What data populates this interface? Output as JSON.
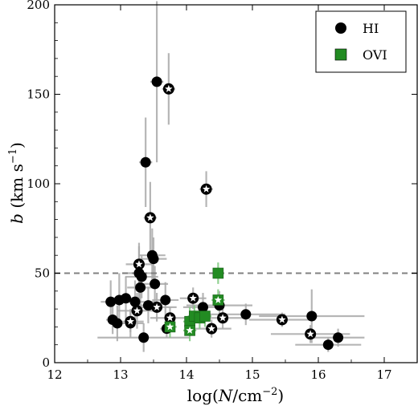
{
  "chart_data": {
    "type": "scatter",
    "xlabel_main": "log(",
    "xlabel_var": "N",
    "xlabel_unit": "/cm",
    "xlabel_exp": "−2",
    "xlabel_close": ")",
    "ylabel_var": "b",
    "ylabel_unit": "(km s",
    "ylabel_exp": "−1",
    "ylabel_close": ")",
    "xlim": [
      12,
      17.5
    ],
    "ylim": [
      0,
      200
    ],
    "xticks": [
      12,
      13,
      14,
      15,
      16,
      17
    ],
    "yticks": [
      0,
      50,
      100,
      150,
      200
    ],
    "hline": {
      "y": 50,
      "style": "dashed",
      "color": "#808080"
    },
    "legend": {
      "position": "top-right",
      "entries": [
        {
          "label": "HI",
          "marker": "circle",
          "color": "#000000"
        },
        {
          "label": "OVI",
          "marker": "square",
          "color": "#228B22"
        }
      ]
    },
    "series": [
      {
        "name": "HI",
        "marker": "circle",
        "color": "#000000",
        "points": [
          {
            "x": 12.85,
            "y": 34,
            "xerr": 0.15,
            "yerr": 12
          },
          {
            "x": 12.88,
            "y": 24,
            "xerr": 0.1,
            "yerr": 8
          },
          {
            "x": 12.95,
            "y": 22,
            "xerr": 0.1,
            "yerr": 10
          },
          {
            "x": 12.98,
            "y": 35,
            "xerr": 0.2,
            "yerr": 15
          },
          {
            "x": 13.08,
            "y": 36,
            "xerr": 0.2,
            "yerr": 12
          },
          {
            "x": 13.15,
            "y": 22,
            "xerr": 0.2,
            "yerr": 8
          },
          {
            "x": 13.22,
            "y": 34,
            "xerr": 0.3,
            "yerr": 12
          },
          {
            "x": 13.28,
            "y": 50,
            "xerr": 0.25,
            "yerr": 15
          },
          {
            "x": 13.3,
            "y": 42,
            "xerr": 0.2,
            "yerr": 10
          },
          {
            "x": 13.32,
            "y": 48,
            "xerr": 0.25,
            "yerr": 12
          },
          {
            "x": 13.35,
            "y": 14,
            "xerr": 0.7,
            "yerr": 8
          },
          {
            "x": 13.38,
            "y": 112,
            "xerr": 0.1,
            "yerr": 25
          },
          {
            "x": 13.42,
            "y": 32,
            "xerr": 0.15,
            "yerr": 10
          },
          {
            "x": 13.48,
            "y": 60,
            "xerr": 0.2,
            "yerr": 15
          },
          {
            "x": 13.5,
            "y": 58,
            "xerr": 0.2,
            "yerr": 12
          },
          {
            "x": 13.52,
            "y": 44,
            "xerr": 0.2,
            "yerr": 10
          },
          {
            "x": 13.55,
            "y": 157,
            "xerr": 0.1,
            "yerr": 45
          },
          {
            "x": 13.68,
            "y": 35,
            "xerr": 0.2,
            "yerr": 10
          },
          {
            "x": 13.7,
            "y": 19,
            "xerr": 0.1,
            "yerr": 5
          },
          {
            "x": 14.25,
            "y": 31,
            "xerr": 0.3,
            "yerr": 8
          },
          {
            "x": 14.5,
            "y": 32,
            "xerr": 0.5,
            "yerr": 8
          },
          {
            "x": 14.9,
            "y": 27,
            "xerr": 0.6,
            "yerr": 6
          },
          {
            "x": 15.9,
            "y": 26,
            "xerr": 0.8,
            "yerr": 15
          },
          {
            "x": 16.15,
            "y": 10,
            "xerr": 0.5,
            "yerr": 4
          },
          {
            "x": 16.3,
            "y": 14,
            "xerr": 0.4,
            "yerr": 5
          }
        ]
      },
      {
        "name": "HI (star)",
        "marker": "star-circle",
        "color": "#000000",
        "points": [
          {
            "x": 13.15,
            "y": 23,
            "xerr": 0.2,
            "yerr": 6
          },
          {
            "x": 13.25,
            "y": 29,
            "xerr": 0.3,
            "yerr": 10
          },
          {
            "x": 13.28,
            "y": 55,
            "xerr": 0.2,
            "yerr": 12
          },
          {
            "x": 13.45,
            "y": 81,
            "xerr": 0.1,
            "yerr": 20
          },
          {
            "x": 13.55,
            "y": 31,
            "xerr": 0.3,
            "yerr": 8
          },
          {
            "x": 13.73,
            "y": 153,
            "xerr": 0.1,
            "yerr": 20
          },
          {
            "x": 13.75,
            "y": 25,
            "xerr": 0.3,
            "yerr": 6
          },
          {
            "x": 14.1,
            "y": 36,
            "xerr": 0.2,
            "yerr": 6
          },
          {
            "x": 14.3,
            "y": 97,
            "xerr": 0.1,
            "yerr": 10
          },
          {
            "x": 14.38,
            "y": 19,
            "xerr": 0.3,
            "yerr": 5
          },
          {
            "x": 14.55,
            "y": 25,
            "xerr": 0.4,
            "yerr": 6
          },
          {
            "x": 15.45,
            "y": 24,
            "xerr": 0.5,
            "yerr": 4
          },
          {
            "x": 15.88,
            "y": 16,
            "xerr": 0.6,
            "yerr": 5
          }
        ]
      },
      {
        "name": "OVI",
        "marker": "square",
        "color": "#228B22",
        "points": [
          {
            "x": 14.05,
            "y": 23,
            "xerr": 0.1,
            "yerr": 8
          },
          {
            "x": 14.12,
            "y": 26,
            "xerr": 0.1,
            "yerr": 6
          },
          {
            "x": 14.2,
            "y": 25,
            "xerr": 0.1,
            "yerr": 6
          },
          {
            "x": 14.28,
            "y": 26,
            "xerr": 0.1,
            "yerr": 6
          },
          {
            "x": 14.48,
            "y": 50,
            "xerr": 0.08,
            "yerr": 6
          }
        ]
      },
      {
        "name": "OVI (star)",
        "marker": "star-square",
        "color": "#228B22",
        "points": [
          {
            "x": 13.75,
            "y": 20,
            "xerr": 0.1,
            "yerr": 6
          },
          {
            "x": 14.05,
            "y": 18,
            "xerr": 0.1,
            "yerr": 6
          },
          {
            "x": 14.48,
            "y": 35,
            "xerr": 0.1,
            "yerr": 6
          }
        ]
      }
    ]
  }
}
